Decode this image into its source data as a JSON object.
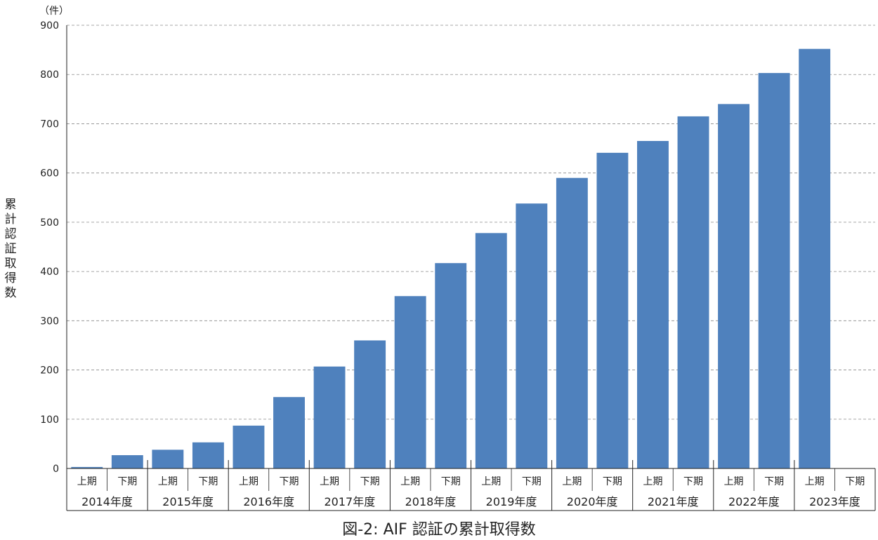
{
  "chart_data": {
    "type": "bar",
    "title": "",
    "caption": "図-2: AIF 認証の累計取得数",
    "ylabel": "累計認証取得数",
    "yunit": "（件）",
    "ylim": [
      0,
      900
    ],
    "yticks": [
      "0",
      "100",
      "200",
      "300",
      "400",
      "500",
      "600",
      "700",
      "800",
      "900"
    ],
    "grid": true,
    "bar_color": "#4f81bd",
    "years": [
      "2014年度",
      "2015年度",
      "2016年度",
      "2017年度",
      "2018年度",
      "2019年度",
      "2020年度",
      "2021年度",
      "2022年度",
      "2023年度"
    ],
    "halves": [
      "上期",
      "下期"
    ],
    "values": [
      3,
      27,
      38,
      53,
      87,
      145,
      207,
      260,
      350,
      417,
      478,
      538,
      590,
      641,
      665,
      715,
      740,
      803,
      852,
      null
    ]
  }
}
